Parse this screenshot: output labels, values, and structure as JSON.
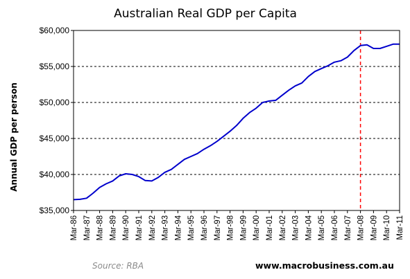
{
  "chart_data": {
    "type": "line",
    "title": "Australian Real GDP per Capita",
    "ylabel": "Annual GDP per person",
    "xlabel": "",
    "ylim": [
      35000,
      60000
    ],
    "yticks": [
      {
        "value": 35000,
        "label": "$35,000"
      },
      {
        "value": 40000,
        "label": "$40,000"
      },
      {
        "value": 45000,
        "label": "$45,000"
      },
      {
        "value": 50000,
        "label": "$50,000"
      },
      {
        "value": 55000,
        "label": "$55,000"
      },
      {
        "value": 60000,
        "label": "$60,000"
      }
    ],
    "xlim": [
      1986.0,
      2011.0
    ],
    "xticks": [
      {
        "value": 1986,
        "label": "Mar-86"
      },
      {
        "value": 1987,
        "label": "Mar-87"
      },
      {
        "value": 1988,
        "label": "Mar-88"
      },
      {
        "value": 1989,
        "label": "Mar-89"
      },
      {
        "value": 1990,
        "label": "Mar-90"
      },
      {
        "value": 1991,
        "label": "Mar-91"
      },
      {
        "value": 1992,
        "label": "Mar-92"
      },
      {
        "value": 1993,
        "label": "Mar-93"
      },
      {
        "value": 1994,
        "label": "Mar-94"
      },
      {
        "value": 1995,
        "label": "Mar-95"
      },
      {
        "value": 1996,
        "label": "Mar-96"
      },
      {
        "value": 1997,
        "label": "Mar-97"
      },
      {
        "value": 1998,
        "label": "Mar-98"
      },
      {
        "value": 1999,
        "label": "Mar-99"
      },
      {
        "value": 2000,
        "label": "Mar-00"
      },
      {
        "value": 2001,
        "label": "Mar-01"
      },
      {
        "value": 2002,
        "label": "Mar-02"
      },
      {
        "value": 2003,
        "label": "Mar-03"
      },
      {
        "value": 2004,
        "label": "Mar-04"
      },
      {
        "value": 2005,
        "label": "Mar-05"
      },
      {
        "value": 2006,
        "label": "Mar-06"
      },
      {
        "value": 2007,
        "label": "Mar-07"
      },
      {
        "value": 2008,
        "label": "Mar-08"
      },
      {
        "value": 2009,
        "label": "Mar-09"
      },
      {
        "value": 2010,
        "label": "Mar-10"
      },
      {
        "value": 2011,
        "label": "Mar-11"
      }
    ],
    "grid": "horizontal dashed",
    "series": [
      {
        "color": "#0000cc",
        "x": [
          1986.0,
          1986.5,
          1987.0,
          1987.5,
          1988.0,
          1988.5,
          1989.0,
          1989.5,
          1990.0,
          1990.5,
          1991.0,
          1991.5,
          1992.0,
          1992.5,
          1993.0,
          1993.5,
          1994.0,
          1994.5,
          1995.0,
          1995.5,
          1996.0,
          1996.5,
          1997.0,
          1997.5,
          1998.0,
          1998.5,
          1999.0,
          1999.5,
          2000.0,
          2000.5,
          2001.0,
          2001.5,
          2002.0,
          2002.5,
          2003.0,
          2003.5,
          2004.0,
          2004.5,
          2005.0,
          2005.5,
          2006.0,
          2006.5,
          2007.0,
          2007.5,
          2008.0,
          2008.5,
          2009.0,
          2009.5,
          2010.0,
          2010.5,
          2011.0
        ],
        "values": [
          36500,
          36550,
          36700,
          37400,
          38200,
          38700,
          39100,
          39800,
          40100,
          40000,
          39700,
          39150,
          39100,
          39600,
          40300,
          40700,
          41400,
          42100,
          42500,
          42900,
          43500,
          44000,
          44600,
          45300,
          46000,
          46800,
          47800,
          48600,
          49200,
          50000,
          50200,
          50300,
          51000,
          51700,
          52300,
          52700,
          53600,
          54300,
          54700,
          55100,
          55600,
          55800,
          56300,
          57200,
          57900,
          58000,
          57500,
          57500,
          57800,
          58100,
          58100
        ]
      }
    ],
    "annotations": [
      {
        "type": "vertical-dashed-line",
        "x": 2008.0,
        "color": "#ff0000"
      }
    ]
  },
  "footer": {
    "source": "Source: RBA",
    "site": "www.macrobusiness.com.au"
  }
}
